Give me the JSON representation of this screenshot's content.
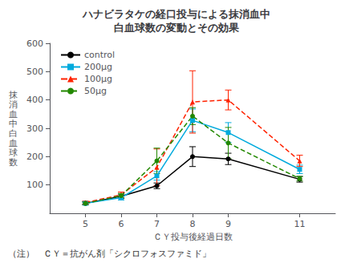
{
  "chart_data": {
    "type": "line",
    "title": "ハナビラタケの経口投与による抹消血中\n白血球数の変動とその効果",
    "xlabel": "ＣＹ投与後経過日数",
    "ylabel": "抹\n消\n血\n中\n白\n血\n球\n数",
    "annotations": [
      "（注）　ＣＹ＝抗がん剤「シクロフォスファミド」"
    ],
    "x": [
      5,
      6,
      7,
      8,
      9,
      11
    ],
    "series": [
      {
        "name": "control",
        "color": "#000000",
        "marker": "circle",
        "line_style": "solid",
        "values": [
          35,
          60,
          97,
          200,
          192,
          120
        ],
        "yerr": [
          5,
          8,
          10,
          35,
          20,
          10
        ]
      },
      {
        "name": "200μg",
        "color": "#00aadd",
        "marker": "square",
        "line_style": "solid",
        "values": [
          35,
          55,
          132,
          328,
          285,
          155
        ],
        "yerr": [
          5,
          8,
          15,
          40,
          35,
          15
        ]
      },
      {
        "name": "100μg",
        "color": "#ff2200",
        "marker": "triangle",
        "line_style": "dashed",
        "values": [
          38,
          65,
          162,
          393,
          400,
          185
        ],
        "yerr": [
          5,
          10,
          65,
          110,
          35,
          20
        ]
      },
      {
        "name": "50μg",
        "color": "#228800",
        "marker": "circle",
        "line_style": "dashed",
        "values": [
          35,
          62,
          185,
          343,
          248,
          122
        ],
        "yerr": [
          5,
          8,
          45,
          30,
          55,
          8
        ]
      }
    ],
    "xlim": [
      4,
      12
    ],
    "xticks": [
      5,
      6,
      7,
      8,
      9,
      11
    ],
    "ylim": [
      0,
      600
    ],
    "yticks": [
      100,
      200,
      300,
      400,
      500,
      600
    ],
    "grid": false,
    "legend": "upper left"
  }
}
